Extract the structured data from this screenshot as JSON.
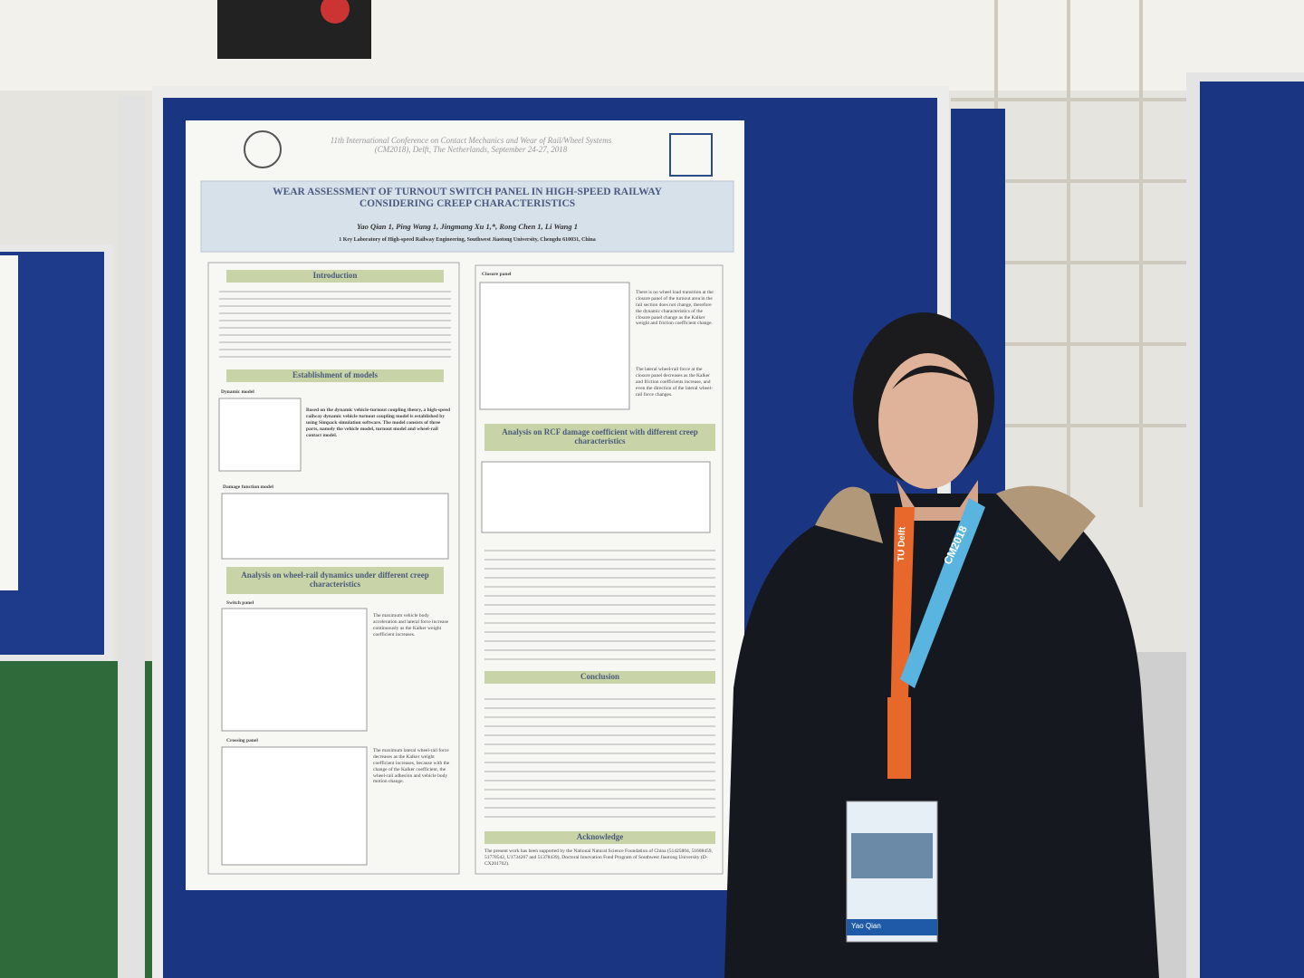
{
  "poster": {
    "conference": [
      "11th International Conference on Contact Mechanics and Wear of Rail/Wheel Systems",
      "(CM2018), Delft, The Netherlands, September 24-27, 2018"
    ],
    "title": [
      "WEAR ASSESSMENT OF TURNOUT SWITCH PANEL IN HIGH-SPEED RAILWAY",
      "CONSIDERING CREEP CHARACTERISTICS"
    ],
    "authors": "Yao Qian 1, Ping Wang 1, Jingmang Xu 1,*, Rong Chen 1, Li Wang 1",
    "affiliation": "1 Key Laboratory of High-speed Railway Engineering, Southwest Jiaotong University, Chengdu 610031, China",
    "left": {
      "introduction": "Introduction",
      "models": "Establishment of models",
      "dynamic_model": "Dynamic model",
      "dynamic_text": "Based on the dynamic vehicle-turnout coupling theory, a high-speed railway dynamic vehicle turnout coupling model is established by using Simpack simulation software. The model consists of three parts, namely the vehicle model, turnout model and wheel-rail contact model.",
      "damage_model": "Damage function model",
      "dynamics": "Analysis on wheel-rail dynamics under different creep characteristics",
      "switch_panel": "Switch panel",
      "switch_text": "The maximum vehicle body acceleration and lateral force increase continuously as the Kalker weight coefficient increases.",
      "crossing_panel": "Crossing panel",
      "crossing_text": "The maximum lateral wheel-rail force decreases as the Kalker weight coefficient increases, because with the change of the Kalker coefficient, the wheel-rail adhesion and vehicle body motion change."
    },
    "right": {
      "closure_panel": "Closure panel",
      "closure_text": "There is no wheel load transition at the closure panel of the turnout area in the rail section does not change, therefore the dynamic characteristics of the closure panel change as the Kalker weight and friction coefficient change.",
      "closure_text2": "The lateral wheel-rail force at the closure panel decreases as the Kalker and friction coefficients increase, and even the direction of the lateral wheel-rail force changes.",
      "rcf": "Analysis on RCF damage coefficient with different creep characteristics",
      "conclusion": "Conclusion",
      "acknowledge": "Acknowledge",
      "ack_text": "The present work has been supported by the National Natural Science Foundation of China (51425804, 51608459, 51778542, U1734207 and 51378439), Doctoral Innovation Fund Program of Southwest Jiaotong University (D-CX201702)."
    }
  },
  "lanyard": {
    "event": "CM2018",
    "host": "TU Delft"
  },
  "badge": {
    "name": "Yao Qian"
  }
}
